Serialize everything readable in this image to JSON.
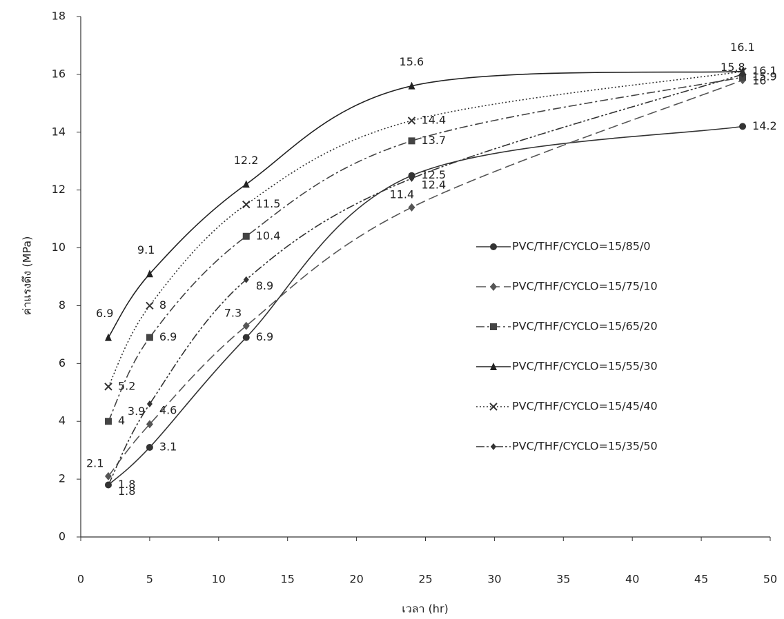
{
  "chart_data": {
    "type": "scatter",
    "x_label": "เวลา (hr)",
    "y_label": "ค่าแรงดึง (MPa)",
    "xlim": [
      0,
      50
    ],
    "xticks": [
      0,
      5,
      10,
      15,
      20,
      25,
      30,
      35,
      40,
      45,
      50
    ],
    "ylim": [
      0,
      18
    ],
    "yticks": [
      0,
      2,
      4,
      6,
      8,
      10,
      12,
      14,
      16,
      18
    ],
    "x": [
      2,
      5,
      12,
      24,
      48
    ],
    "series": [
      {
        "name": "PVC/THF/CYCLO=15/85/0",
        "color": "#333333",
        "marker": "circle",
        "dash": "none",
        "values": [
          1.8,
          3.1,
          6.9,
          12.5,
          14.2
        ]
      },
      {
        "name": "PVC/THF/CYCLO=15/75/10",
        "color": "#555555",
        "marker": "diamond",
        "dash": "14 6",
        "values": [
          2.1,
          3.9,
          7.3,
          11.4,
          15.8
        ]
      },
      {
        "name": "PVC/THF/CYCLO=15/65/20",
        "color": "#444444",
        "marker": "square",
        "dash": "12 4 3 4",
        "values": [
          4,
          6.9,
          10.4,
          13.7,
          15.9
        ]
      },
      {
        "name": "PVC/THF/CYCLO=15/55/30",
        "color": "#222222",
        "marker": "triangle",
        "dash": "none",
        "values": [
          6.9,
          9.1,
          12.2,
          15.6,
          16.1
        ]
      },
      {
        "name": "PVC/THF/CYCLO=15/45/40",
        "color": "#333333",
        "marker": "x",
        "dash": "2 3",
        "values": [
          5.2,
          8,
          11.5,
          14.4,
          16.1
        ]
      },
      {
        "name": "PVC/THF/CYCLO=15/35/50",
        "color": "#333333",
        "marker": "smalldiamond",
        "dash": "12 3 3 3 3 3",
        "values": [
          1.8,
          4.6,
          8.9,
          12.4,
          16
        ]
      }
    ]
  }
}
